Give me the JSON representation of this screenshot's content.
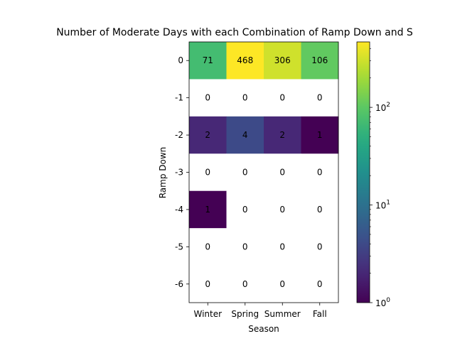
{
  "chart_data": {
    "type": "heatmap",
    "title": "Number of Moderate Days with each Combination of Ramp Down and S",
    "xlabel": "Season",
    "ylabel": "Ramp Down",
    "x_categories": [
      "Winter",
      "Spring",
      "Summer",
      "Fall"
    ],
    "y_categories": [
      "0",
      "-1",
      "-2",
      "-3",
      "-4",
      "-5",
      "-6"
    ],
    "values": [
      [
        71,
        468,
        306,
        106
      ],
      [
        0,
        0,
        0,
        0
      ],
      [
        2,
        4,
        2,
        1
      ],
      [
        0,
        0,
        0,
        0
      ],
      [
        1,
        0,
        0,
        0
      ],
      [
        0,
        0,
        0,
        0
      ],
      [
        0,
        0,
        0,
        0
      ]
    ],
    "colorbar": {
      "scale": "log",
      "range": [
        1,
        468
      ],
      "colormap": "viridis",
      "tick_values": [
        1,
        10,
        100
      ],
      "tick_labels": [
        {
          "base": "10",
          "exp": "0"
        },
        {
          "base": "10",
          "exp": "1"
        },
        {
          "base": "10",
          "exp": "2"
        }
      ]
    },
    "zero_cell_color": "#ffffff"
  }
}
